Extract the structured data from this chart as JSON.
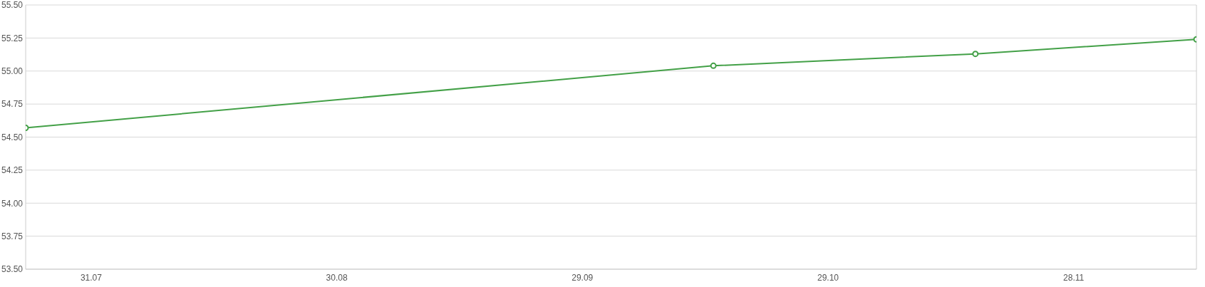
{
  "chart_data": {
    "type": "line",
    "x": [
      "--07-23",
      "--10-15",
      "--11-16",
      "--12-13"
    ],
    "series": [
      {
        "color": "#43a047",
        "values": [
          54.57,
          55.04,
          55.13,
          55.24
        ]
      }
    ],
    "xlim": [
      "--07-23",
      "--12-13"
    ],
    "xticks": [
      {
        "value": "--07-31",
        "label": "31.07"
      },
      {
        "value": "--08-30",
        "label": "30.08"
      },
      {
        "value": "--09-29",
        "label": "29.09"
      },
      {
        "value": "--10-29",
        "label": "29.10"
      },
      {
        "value": "--11-28",
        "label": "28.11"
      }
    ],
    "ylim": [
      53.5,
      55.5
    ],
    "yticks": [
      {
        "value": 53.5,
        "label": "53.50"
      },
      {
        "value": 53.75,
        "label": "53.75"
      },
      {
        "value": 54,
        "label": "54.00"
      },
      {
        "value": 54.25,
        "label": "54.25"
      },
      {
        "value": 54.5,
        "label": "54.50"
      },
      {
        "value": 54.75,
        "label": "54.75"
      },
      {
        "value": 55,
        "label": "55.00"
      },
      {
        "value": 55.25,
        "label": "55.25"
      },
      {
        "value": 55.5,
        "label": "55.50"
      }
    ],
    "grid": "y",
    "marker": "circle",
    "line_style": "solid"
  }
}
